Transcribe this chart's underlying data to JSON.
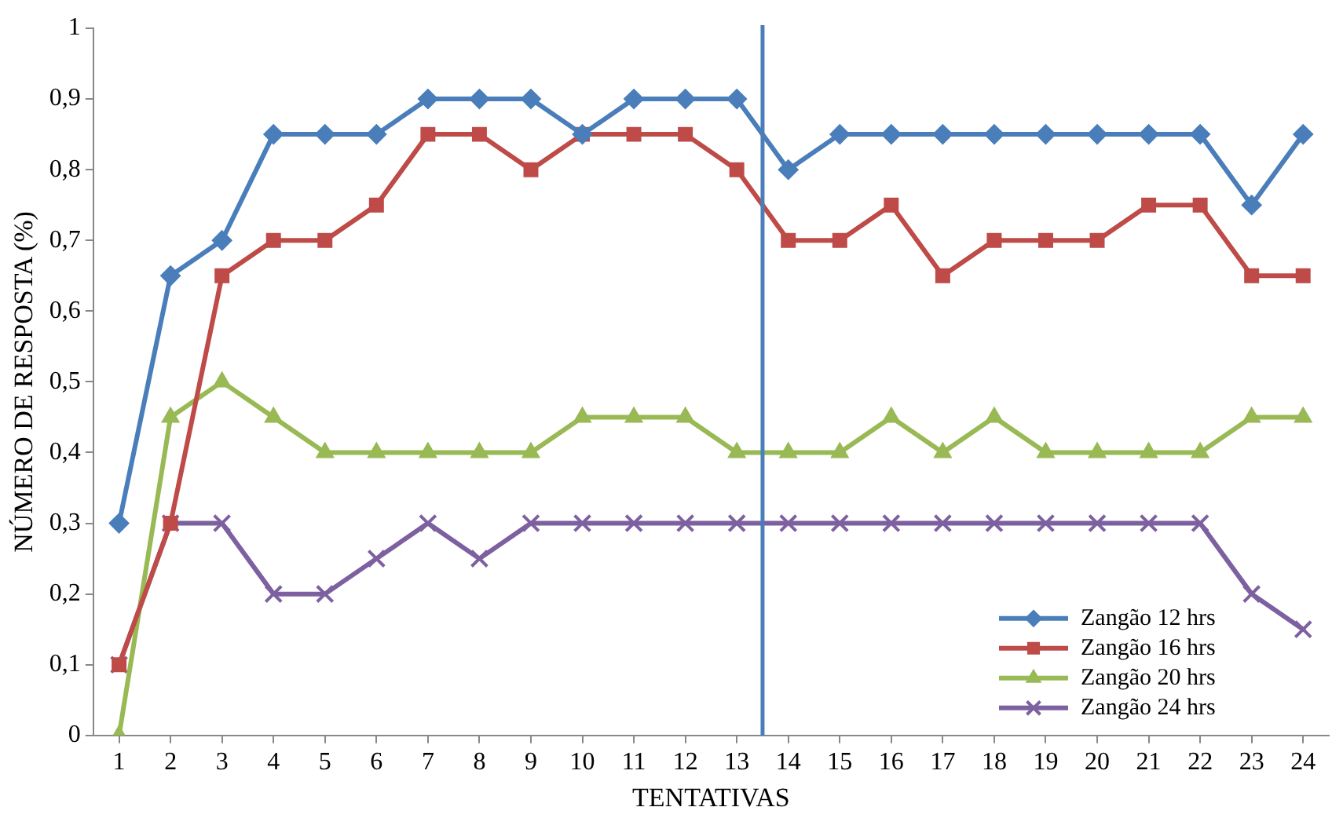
{
  "chart_data": {
    "type": "line",
    "xlabel": "TENTATIVAS",
    "ylabel": "NÚMERO DE RESPOSTA (%)",
    "x": [
      1,
      2,
      3,
      4,
      5,
      6,
      7,
      8,
      9,
      10,
      11,
      12,
      13,
      14,
      15,
      16,
      17,
      18,
      19,
      20,
      21,
      22,
      23,
      24
    ],
    "xlim": [
      0.5,
      24.5
    ],
    "xticks": [
      1,
      2,
      3,
      4,
      5,
      6,
      7,
      8,
      9,
      10,
      11,
      12,
      13,
      14,
      15,
      16,
      17,
      18,
      19,
      20,
      21,
      22,
      23,
      24
    ],
    "ylim": [
      0,
      1
    ],
    "yticks": [
      0,
      {
        "value": 0.1,
        "label": "0,1"
      },
      {
        "value": 0.2,
        "label": "0,2"
      },
      {
        "value": 0.3,
        "label": "0,3"
      },
      {
        "value": 0.4,
        "label": "0,4"
      },
      {
        "value": 0.5,
        "label": "0,5"
      },
      {
        "value": 0.6,
        "label": "0,6"
      },
      {
        "value": 0.7,
        "label": "0,7"
      },
      {
        "value": 0.8,
        "label": "0,8"
      },
      {
        "value": 0.9,
        "label": "0,9"
      },
      1
    ],
    "grid": false,
    "legend": "bottom right",
    "line_style": "solid",
    "ref_lines": [
      {
        "axis": "x",
        "value": 13.5,
        "color": "#4a7ebb"
      }
    ],
    "series": [
      {
        "name": "Zangão 12 hrs",
        "color": "#4a7ebb",
        "marker": "diamond",
        "values": [
          0.3,
          0.65,
          0.7,
          0.85,
          0.85,
          0.85,
          0.9,
          0.9,
          0.9,
          0.85,
          0.9,
          0.9,
          0.9,
          0.8,
          0.85,
          0.85,
          0.85,
          0.85,
          0.85,
          0.85,
          0.85,
          0.85,
          0.75,
          0.85
        ]
      },
      {
        "name": "Zangão 16 hrs",
        "color": "#be4b48",
        "marker": "square",
        "values": [
          0.1,
          0.3,
          0.65,
          0.7,
          0.7,
          0.75,
          0.85,
          0.85,
          0.8,
          0.85,
          0.85,
          0.85,
          0.8,
          0.7,
          0.7,
          0.75,
          0.65,
          0.7,
          0.7,
          0.7,
          0.75,
          0.75,
          0.65,
          0.65
        ]
      },
      {
        "name": "Zangão 20 hrs",
        "color": "#98b954",
        "marker": "triangle",
        "values": [
          0,
          0.45,
          0.5,
          0.45,
          0.4,
          0.4,
          0.4,
          0.4,
          0.4,
          0.45,
          0.45,
          0.45,
          0.4,
          0.4,
          0.4,
          0.45,
          0.4,
          0.45,
          0.4,
          0.4,
          0.4,
          0.4,
          0.45,
          0.45
        ]
      },
      {
        "name": "Zangão 24 hrs",
        "color": "#7d60a0",
        "marker": "cross",
        "values": [
          0.1,
          0.3,
          0.3,
          0.2,
          0.2,
          0.25,
          0.3,
          0.25,
          0.3,
          0.3,
          0.3,
          0.3,
          0.3,
          0.3,
          0.3,
          0.3,
          0.3,
          0.3,
          0.3,
          0.3,
          0.3,
          0.3,
          0.2,
          0.15
        ]
      }
    ]
  }
}
